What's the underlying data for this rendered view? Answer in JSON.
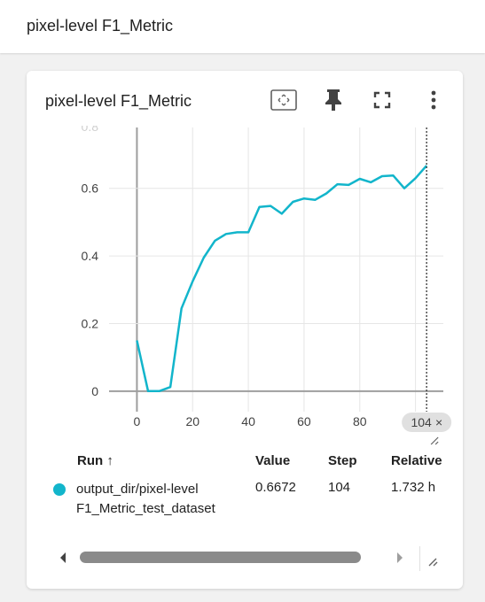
{
  "section": {
    "title": "pixel-level F1_Metric"
  },
  "card": {
    "title": "pixel-level F1_Metric",
    "toolbar": {
      "fit_icon": "fit-domain-icon",
      "pin_icon": "pin-icon",
      "fullscreen_icon": "fullscreen-icon",
      "more_icon": "more-vert-icon"
    }
  },
  "chart_data": {
    "type": "line",
    "title": "",
    "xlabel": "",
    "ylabel": "",
    "xlim": [
      -10,
      110
    ],
    "ylim": [
      -0.1,
      0.78
    ],
    "x_ticks": [
      "0",
      "20",
      "40",
      "60",
      "80"
    ],
    "y_ticks": [
      "0",
      "0.2",
      "0.4",
      "0.6"
    ],
    "y_tick_values": [
      0,
      0.2,
      0.4,
      0.6
    ],
    "x_tick_values": [
      0,
      20,
      40,
      60,
      80
    ],
    "top_tick_partial": "0.8",
    "cursor_step": 104,
    "cursor_label": "104",
    "series": [
      {
        "color": "#12b5cb",
        "x": [
          0,
          4,
          8,
          12,
          16,
          20,
          24,
          28,
          32,
          36,
          40,
          44,
          48,
          52,
          56,
          60,
          64,
          68,
          72,
          76,
          80,
          84,
          88,
          92,
          96,
          100,
          104
        ],
        "y": [
          0.15,
          0.0,
          0.0,
          0.012,
          0.245,
          0.325,
          0.395,
          0.445,
          0.465,
          0.47,
          0.47,
          0.545,
          0.548,
          0.525,
          0.56,
          0.57,
          0.566,
          0.585,
          0.612,
          0.61,
          0.628,
          0.618,
          0.636,
          0.638,
          0.6,
          0.63,
          0.667
        ]
      }
    ]
  },
  "table": {
    "headers": {
      "run": "Run ↑",
      "value": "Value",
      "step": "Step",
      "relative": "Relative"
    },
    "rows": [
      {
        "run_line1": "output_dir/pixel-level",
        "run_line2": "F1_Metric_test_dataset",
        "value": "0.6672",
        "step": "104",
        "relative": "1.732 h",
        "color": "#12b5cb"
      }
    ]
  }
}
